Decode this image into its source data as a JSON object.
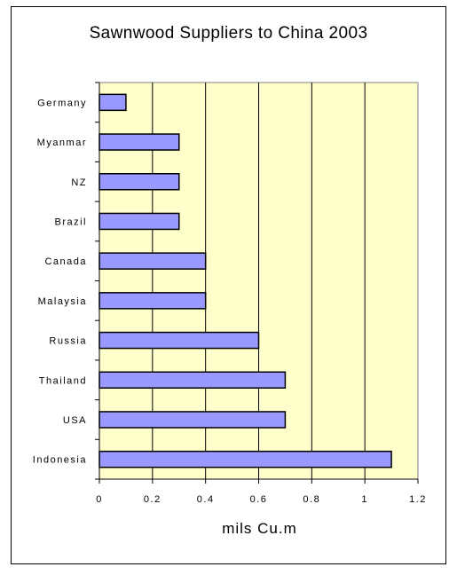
{
  "chart_data": {
    "type": "bar",
    "orientation": "horizontal",
    "title": "Sawnwood Suppliers to China 2003",
    "xlabel": "mils Cu.m",
    "ylabel": "",
    "categories": [
      "Germany",
      "Myanmar",
      "NZ",
      "Brazil",
      "Canada",
      "Malaysia",
      "Russia",
      "Thailand",
      "USA",
      "Indonesia"
    ],
    "values": [
      0.1,
      0.3,
      0.3,
      0.3,
      0.4,
      0.4,
      0.6,
      0.7,
      0.7,
      1.1
    ],
    "xlim": [
      0,
      1.2
    ],
    "xticks": [
      "0",
      "0.2",
      "0.4",
      "0.6",
      "0.8",
      "1",
      "1.2"
    ],
    "grid": "vertical",
    "legend": "none",
    "colors": {
      "plot_background": "#ffffcc",
      "bar_fill": "#9999ff",
      "bar_stroke": "#000000"
    }
  }
}
